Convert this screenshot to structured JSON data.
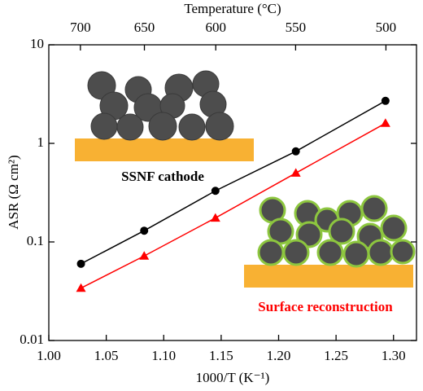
{
  "chart_data": {
    "type": "scatter",
    "x_label": "1000/T (K⁻¹)",
    "y_label": "ASR (Ω cm²)",
    "x2_label": "Temperature (°C)",
    "x": [
      1.028,
      1.083,
      1.145,
      1.215,
      1.293
    ],
    "series": [
      {
        "color": "#000000",
        "marker": "circle",
        "values": [
          0.06,
          0.13,
          0.33,
          0.83,
          2.7
        ]
      },
      {
        "color": "#ff0000",
        "marker": "triangle",
        "values": [
          0.034,
          0.072,
          0.175,
          0.5,
          1.6
        ]
      }
    ],
    "xlim": [
      1.0,
      1.32
    ],
    "xticks": [
      {
        "value": 1.0,
        "label": "1.00"
      },
      1.05,
      {
        "value": 1.1,
        "label": "1.10"
      },
      1.15,
      {
        "value": 1.2,
        "label": "1.20"
      },
      1.25,
      {
        "value": 1.3,
        "label": "1.30"
      }
    ],
    "x2ticks": [
      {
        "value": 1.0275,
        "label": "700"
      },
      {
        "value": 1.0832,
        "label": "650"
      },
      {
        "value": 1.1453,
        "label": "600"
      },
      {
        "value": 1.2148,
        "label": "550"
      },
      {
        "value": 1.2934,
        "label": "500"
      }
    ],
    "ylim": [
      0.01,
      10
    ],
    "yticks": [
      0.01,
      0.1,
      1,
      10
    ],
    "log_y": true,
    "annotations": [
      {
        "text": "SSNF cathode",
        "color": "#000000"
      },
      {
        "text": "Surface reconstruction",
        "color": "#ff0000"
      }
    ]
  }
}
